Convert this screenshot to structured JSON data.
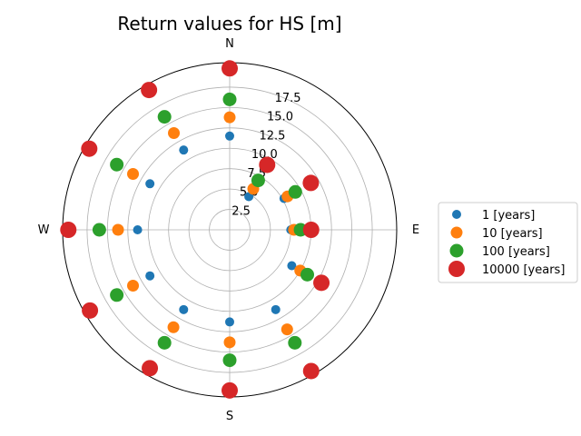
{
  "chart_data": {
    "type": "scatter",
    "projection": "polar",
    "title": "Return values for HS [m]",
    "direction_labels": [
      "N",
      "E",
      "S",
      "W"
    ],
    "radial_ticks": [
      2.5,
      5.0,
      7.5,
      10.0,
      12.5,
      15.0,
      17.5
    ],
    "radial_tick_labels": [
      "2.5",
      "5.0",
      "7.5",
      "10.0",
      "12.5",
      "15.0",
      "17.5"
    ],
    "rlim": [
      0,
      20.5
    ],
    "theta_zero": "N",
    "theta_direction": "clockwise",
    "grid": true,
    "legend_position": "right",
    "angles_deg": [
      0,
      30,
      60,
      90,
      120,
      150,
      180,
      210,
      240,
      270,
      300,
      330
    ],
    "series": [
      {
        "name": "1 [years]",
        "color": "#1f77b4",
        "marker_size": 5,
        "values": [
          11.5,
          4.7,
          7.7,
          7.5,
          8.8,
          11.3,
          11.3,
          11.3,
          11.3,
          11.3,
          11.3,
          11.3
        ]
      },
      {
        "name": "10 [years]",
        "color": "#ff7f0e",
        "marker_size": 6.5,
        "values": [
          13.8,
          5.8,
          8.2,
          7.9,
          10.0,
          14.1,
          13.8,
          13.8,
          13.7,
          13.7,
          13.7,
          13.7
        ]
      },
      {
        "name": "100 [years]",
        "color": "#2ca02c",
        "marker_size": 7.5,
        "values": [
          16.0,
          7.0,
          9.3,
          8.7,
          11.0,
          16.0,
          16.0,
          16.0,
          16.0,
          16.0,
          16.0,
          16.0
        ]
      },
      {
        "name": "10000 [years]",
        "color": "#d62728",
        "marker_size": 9,
        "values": [
          19.8,
          9.2,
          11.5,
          10.0,
          13.0,
          20.0,
          19.7,
          19.6,
          19.8,
          19.8,
          19.9,
          19.8
        ]
      }
    ]
  }
}
